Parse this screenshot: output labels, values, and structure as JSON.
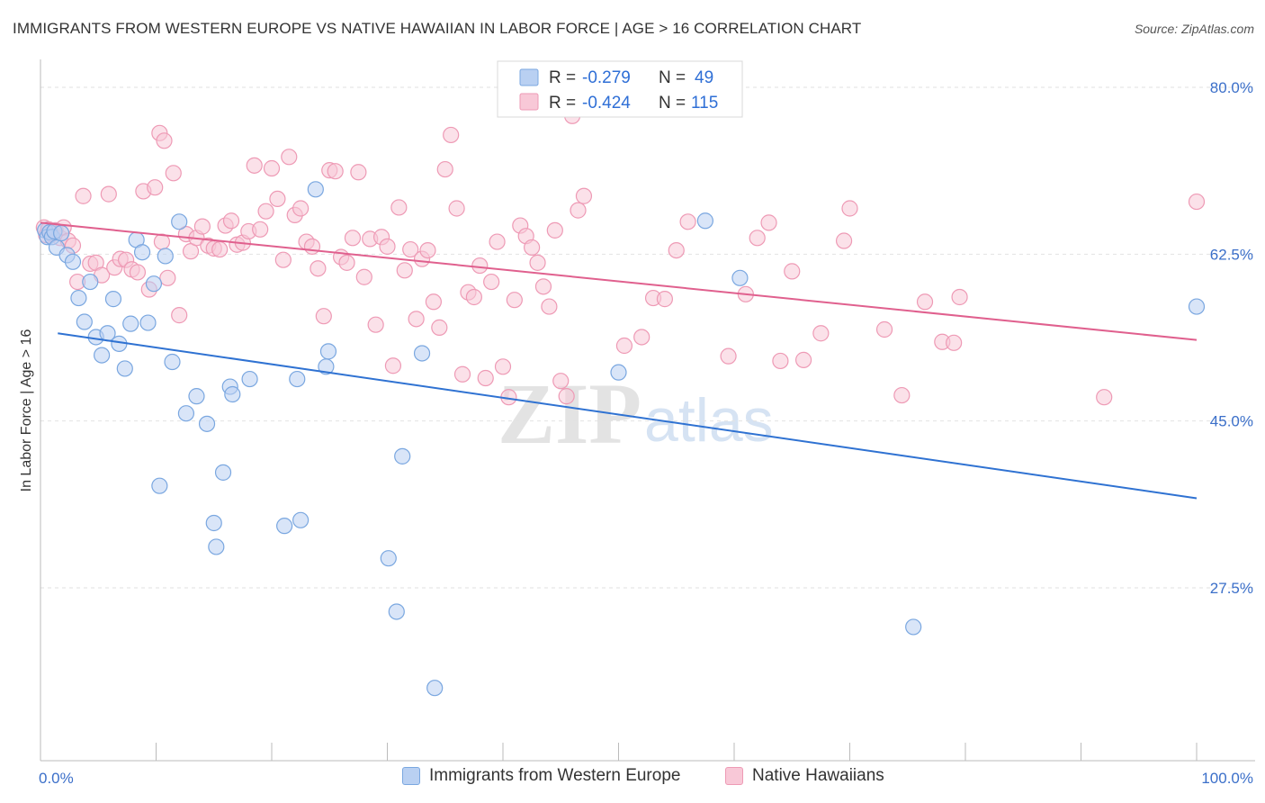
{
  "title": "IMMIGRANTS FROM WESTERN EUROPE VS NATIVE HAWAIIAN IN LABOR FORCE | AGE > 16 CORRELATION CHART",
  "source": "Source: ZipAtlas.com",
  "watermark": {
    "zip": "ZIP",
    "atlas": "atlas"
  },
  "legend_box": {
    "rows": [
      {
        "r_label": "R =",
        "r_value": "-0.279",
        "n_label": "N =",
        "n_value": "49"
      },
      {
        "r_label": "R =",
        "r_value": "-0.424",
        "n_label": "N =",
        "n_value": "115"
      }
    ]
  },
  "chart_data": {
    "type": "scatter",
    "title": "IMMIGRANTS FROM WESTERN EUROPE VS NATIVE HAWAIIAN IN LABOR FORCE | AGE > 16 CORRELATION CHART",
    "xlabel": "",
    "ylabel": "In Labor Force | Age > 16",
    "xlim": [
      0,
      100
    ],
    "ylim": [
      10.5,
      82
    ],
    "x_tick_labels": [
      {
        "value": 0,
        "label": "0.0%"
      },
      {
        "value": 100,
        "label": "100.0%"
      }
    ],
    "y_tick_labels": [
      {
        "value": 80.0,
        "label": "80.0%"
      },
      {
        "value": 62.5,
        "label": "62.5%"
      },
      {
        "value": 45.0,
        "label": "45.0%"
      },
      {
        "value": 27.5,
        "label": "27.5%"
      }
    ],
    "grid": true,
    "legend_position": "bottom",
    "series": [
      {
        "name": "Immigrants from Western Europe",
        "color": "#7aa7e0",
        "fill": "#b9d0f2",
        "line_color": "#2f72d2",
        "r": -0.279,
        "n": 49,
        "trend": {
          "x0": 1.5,
          "y0": 54.2,
          "x1": 100,
          "y1": 36.9
        },
        "points": [
          [
            0.4,
            65.0
          ],
          [
            0.6,
            64.3
          ],
          [
            0.8,
            64.8
          ],
          [
            1.0,
            64.3
          ],
          [
            1.2,
            64.9
          ],
          [
            1.4,
            63.2
          ],
          [
            1.8,
            64.7
          ],
          [
            2.3,
            62.4
          ],
          [
            2.8,
            61.7
          ],
          [
            3.3,
            57.9
          ],
          [
            3.8,
            55.4
          ],
          [
            4.3,
            59.6
          ],
          [
            4.8,
            53.8
          ],
          [
            5.3,
            51.9
          ],
          [
            5.8,
            54.2
          ],
          [
            6.3,
            57.8
          ],
          [
            6.8,
            53.1
          ],
          [
            7.3,
            50.5
          ],
          [
            7.8,
            55.2
          ],
          [
            8.3,
            64.0
          ],
          [
            8.8,
            62.7
          ],
          [
            9.3,
            55.3
          ],
          [
            9.8,
            59.4
          ],
          [
            10.3,
            38.2
          ],
          [
            10.8,
            62.3
          ],
          [
            11.4,
            51.2
          ],
          [
            12.0,
            65.9
          ],
          [
            12.6,
            45.8
          ],
          [
            13.5,
            47.6
          ],
          [
            14.4,
            44.7
          ],
          [
            15.0,
            34.3
          ],
          [
            15.2,
            31.8
          ],
          [
            15.8,
            39.6
          ],
          [
            16.4,
            48.6
          ],
          [
            16.6,
            47.8
          ],
          [
            18.1,
            49.4
          ],
          [
            21.1,
            34.0
          ],
          [
            22.2,
            49.4
          ],
          [
            22.5,
            34.6
          ],
          [
            23.8,
            69.3
          ],
          [
            24.7,
            50.7
          ],
          [
            24.9,
            52.3
          ],
          [
            30.1,
            30.6
          ],
          [
            30.8,
            25.0
          ],
          [
            31.3,
            41.3
          ],
          [
            33.0,
            52.1
          ],
          [
            34.1,
            17.0
          ],
          [
            50.0,
            50.1
          ],
          [
            57.5,
            66.0
          ],
          [
            60.5,
            60.0
          ],
          [
            75.5,
            23.4
          ],
          [
            100.0,
            57.0
          ]
        ]
      },
      {
        "name": "Native Hawaiians",
        "color": "#ee9ab5",
        "fill": "#f8c8d7",
        "line_color": "#e0608e",
        "r": -0.424,
        "n": 115,
        "trend": {
          "x0": 0.0,
          "y0": 65.8,
          "x1": 100,
          "y1": 53.5
        },
        "points": [
          [
            0.3,
            65.3
          ],
          [
            0.5,
            64.5
          ],
          [
            0.7,
            65.1
          ],
          [
            1.0,
            64.6
          ],
          [
            1.3,
            65.0
          ],
          [
            1.7,
            64.2
          ],
          [
            2.0,
            65.3
          ],
          [
            2.4,
            63.9
          ],
          [
            2.8,
            63.4
          ],
          [
            3.2,
            59.6
          ],
          [
            3.7,
            68.6
          ],
          [
            4.3,
            61.5
          ],
          [
            4.8,
            61.6
          ],
          [
            5.3,
            60.3
          ],
          [
            5.9,
            68.8
          ],
          [
            6.4,
            61.1
          ],
          [
            6.9,
            62.0
          ],
          [
            7.4,
            61.9
          ],
          [
            7.9,
            60.9
          ],
          [
            8.4,
            60.6
          ],
          [
            8.9,
            69.1
          ],
          [
            9.4,
            58.8
          ],
          [
            9.9,
            69.5
          ],
          [
            10.5,
            63.8
          ],
          [
            11.0,
            60.0
          ],
          [
            10.3,
            75.2
          ],
          [
            10.7,
            74.4
          ],
          [
            11.5,
            71.0
          ],
          [
            12.0,
            56.1
          ],
          [
            12.6,
            64.6
          ],
          [
            13.0,
            62.8
          ],
          [
            13.5,
            64.2
          ],
          [
            14.0,
            65.4
          ],
          [
            14.5,
            63.4
          ],
          [
            15.0,
            63.1
          ],
          [
            15.5,
            63.0
          ],
          [
            16.0,
            65.5
          ],
          [
            16.5,
            66.0
          ],
          [
            17.0,
            63.5
          ],
          [
            17.5,
            63.7
          ],
          [
            18.0,
            64.9
          ],
          [
            18.5,
            71.8
          ],
          [
            19.0,
            65.1
          ],
          [
            19.5,
            67.0
          ],
          [
            20.0,
            71.5
          ],
          [
            20.5,
            68.3
          ],
          [
            21.0,
            61.9
          ],
          [
            21.5,
            72.7
          ],
          [
            22.0,
            66.6
          ],
          [
            22.5,
            67.3
          ],
          [
            23.0,
            63.8
          ],
          [
            23.5,
            63.3
          ],
          [
            24.0,
            61.0
          ],
          [
            24.5,
            56.0
          ],
          [
            25.0,
            71.3
          ],
          [
            25.5,
            71.2
          ],
          [
            26.0,
            62.2
          ],
          [
            26.5,
            61.6
          ],
          [
            27.0,
            64.2
          ],
          [
            27.5,
            71.1
          ],
          [
            28.0,
            60.1
          ],
          [
            28.5,
            64.1
          ],
          [
            29.0,
            55.1
          ],
          [
            29.5,
            64.3
          ],
          [
            30.0,
            63.3
          ],
          [
            30.5,
            50.8
          ],
          [
            31.0,
            67.4
          ],
          [
            31.5,
            60.8
          ],
          [
            32.0,
            63.0
          ],
          [
            32.5,
            55.7
          ],
          [
            33.0,
            62.0
          ],
          [
            33.5,
            62.9
          ],
          [
            34.0,
            57.5
          ],
          [
            34.5,
            54.8
          ],
          [
            35.0,
            71.4
          ],
          [
            35.5,
            75.0
          ],
          [
            36.0,
            67.3
          ],
          [
            36.5,
            49.9
          ],
          [
            37.0,
            58.5
          ],
          [
            37.5,
            58.0
          ],
          [
            38.0,
            61.3
          ],
          [
            38.5,
            49.5
          ],
          [
            39.0,
            59.6
          ],
          [
            39.5,
            63.8
          ],
          [
            40.0,
            50.7
          ],
          [
            40.5,
            47.5
          ],
          [
            41.0,
            57.7
          ],
          [
            41.5,
            65.5
          ],
          [
            42.0,
            64.4
          ],
          [
            42.5,
            63.2
          ],
          [
            43.0,
            61.6
          ],
          [
            43.5,
            59.1
          ],
          [
            44.0,
            57.0
          ],
          [
            44.5,
            65.0
          ],
          [
            45.0,
            49.2
          ],
          [
            45.5,
            47.6
          ],
          [
            46.0,
            77.0
          ],
          [
            46.5,
            67.1
          ],
          [
            47.0,
            68.6
          ],
          [
            50.5,
            52.9
          ],
          [
            52.0,
            53.8
          ],
          [
            53.0,
            57.9
          ],
          [
            54.0,
            57.8
          ],
          [
            55.0,
            62.9
          ],
          [
            56.0,
            65.9
          ],
          [
            59.5,
            51.8
          ],
          [
            61.0,
            58.3
          ],
          [
            62.0,
            64.2
          ],
          [
            63.0,
            65.8
          ],
          [
            64.0,
            51.3
          ],
          [
            65.0,
            60.7
          ],
          [
            66.0,
            51.4
          ],
          [
            67.5,
            54.2
          ],
          [
            69.5,
            63.9
          ],
          [
            70.0,
            67.3
          ],
          [
            73.0,
            54.6
          ],
          [
            74.5,
            47.7
          ],
          [
            76.5,
            57.5
          ],
          [
            78.0,
            53.3
          ],
          [
            79.0,
            53.2
          ],
          [
            79.5,
            58.0
          ],
          [
            100.0,
            68.0
          ],
          [
            92.0,
            47.5
          ]
        ]
      }
    ]
  }
}
